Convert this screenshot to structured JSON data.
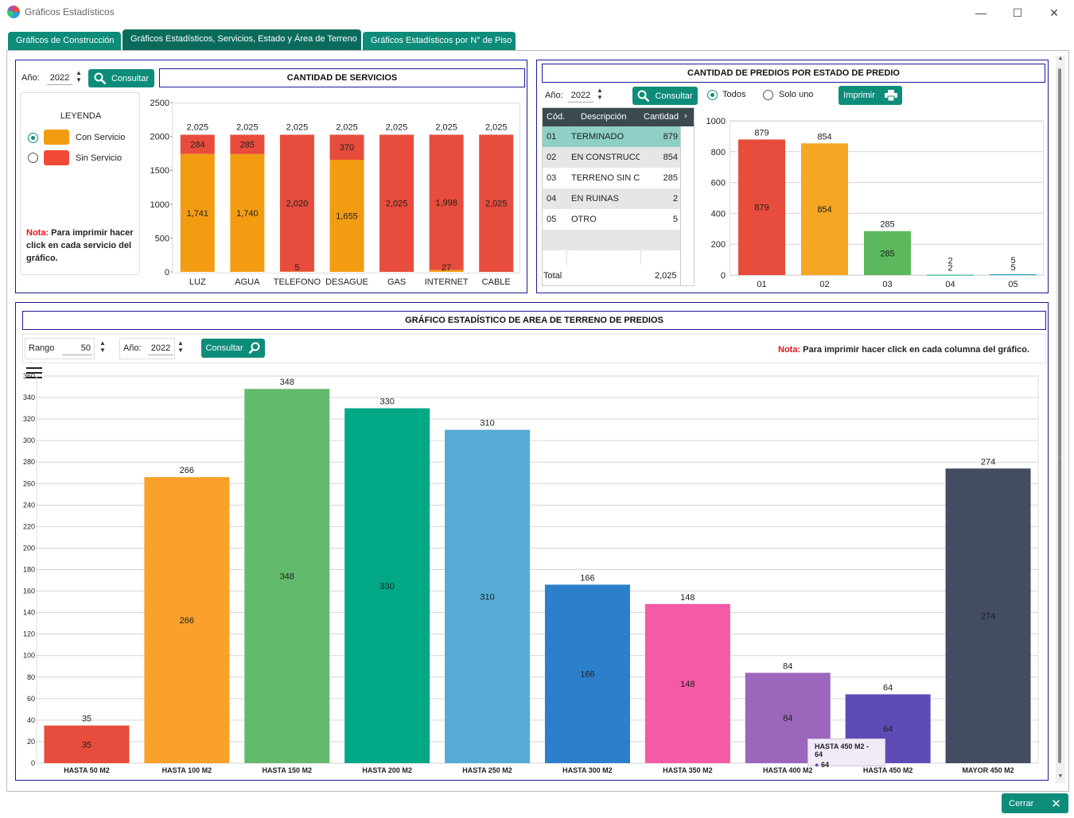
{
  "window": {
    "title": "Gráficos Estadísticos",
    "minimize": "—",
    "maximize": "☐",
    "close": "✕"
  },
  "tabs": [
    {
      "label": "Gráficos de Construcción"
    },
    {
      "label": "Gráficos Estadísticos, Servicios, Estado y Área de Terreno"
    },
    {
      "label": "Gráficos Estadísticos por N° de Piso"
    }
  ],
  "services": {
    "year_label": "Año:",
    "year": "2022",
    "consult_label": "Consultar",
    "caption": "CANTIDAD DE SERVICIOS",
    "legend": {
      "title": "LEYENDA",
      "items": [
        {
          "label": "Con Servicio",
          "color": "#f39c12"
        },
        {
          "label": "Sin Servicio",
          "color": "#f04a36"
        }
      ]
    },
    "note_prefix": "Nota:",
    "note_text": " Para imprimir hacer click en cada servicio del gráfico."
  },
  "estado": {
    "caption": "CANTIDAD DE PREDIOS POR ESTADO DE PREDIO",
    "year_label": "Año:",
    "year": "2022",
    "consult_label": "Consultar",
    "radio_all": "Todos",
    "radio_one": "Solo uno",
    "print_label": "Imprimir",
    "table": {
      "headers": [
        "Cód.",
        "Descripción",
        "Cantidad"
      ],
      "rows": [
        {
          "cod": "01",
          "desc": "TERMINADO",
          "qty": "879"
        },
        {
          "cod": "02",
          "desc": "EN CONSTRUCCIÓN",
          "qty": "854"
        },
        {
          "cod": "03",
          "desc": "TERRENO SIN CO",
          "qty": "285"
        },
        {
          "cod": "04",
          "desc": "EN RUINAS",
          "qty": "2"
        },
        {
          "cod": "05",
          "desc": "OTRO",
          "qty": "5"
        }
      ],
      "total_label": "Total",
      "total_value": "2,025"
    }
  },
  "area": {
    "caption": "GRÁFICO ESTADÍSTICO DE AREA DE TERRENO DE PREDIOS",
    "range_label": "Rango",
    "range": "50",
    "year_label": "Año:",
    "year": "2022",
    "consult_label": "Consultar",
    "note_prefix": "Nota:",
    "note_text": " Para imprimir hacer click en cada columna del gráfico.",
    "tooltip_title": "HASTA 450 M2 - 64",
    "tooltip_value": "64"
  },
  "footer": {
    "close_label": "Cerrar"
  },
  "chart_data": [
    {
      "type": "bar",
      "title": "CANTIDAD DE SERVICIOS",
      "stacked": true,
      "categories": [
        "LUZ",
        "AGUA",
        "TELEFONO",
        "DESAGUE",
        "GAS",
        "INTERNET",
        "CABLE"
      ],
      "series": [
        {
          "name": "Con Servicio",
          "color": "#f39c12",
          "values": [
            1741,
            1740,
            5,
            1655,
            0,
            27,
            0
          ]
        },
        {
          "name": "Sin Servicio",
          "color": "#e74c3c",
          "values": [
            284,
            285,
            2020,
            370,
            2025,
            1998,
            2025
          ]
        }
      ],
      "totals": [
        2025,
        2025,
        2025,
        2025,
        2025,
        2025,
        2025
      ],
      "ylim": [
        0,
        2500
      ],
      "yticks": [
        0,
        500,
        1000,
        1500,
        2000,
        2500
      ]
    },
    {
      "type": "bar",
      "title": "CANTIDAD DE PREDIOS POR ESTADO DE PREDIO",
      "categories": [
        "01",
        "02",
        "03",
        "04",
        "05"
      ],
      "values": [
        879,
        854,
        285,
        2,
        5
      ],
      "colors": [
        "#e74c3c",
        "#f5a623",
        "#5cb85c",
        "#1abc9c",
        "#17a2b8"
      ],
      "ylim": [
        0,
        1000
      ],
      "yticks": [
        0,
        200,
        400,
        600,
        800,
        1000
      ]
    },
    {
      "type": "bar",
      "title": "GRÁFICO ESTADÍSTICO DE AREA DE TERRENO DE PREDIOS",
      "categories": [
        "HASTA 50 M2",
        "HASTA 100 M2",
        "HASTA 150 M2",
        "HASTA 200 M2",
        "HASTA 250 M2",
        "HASTA 300 M2",
        "HASTA 350 M2",
        "HASTA 400 M2",
        "HASTA 450 M2",
        "MAYOR 450 M2"
      ],
      "values": [
        35,
        266,
        348,
        330,
        310,
        166,
        148,
        84,
        64,
        274
      ],
      "colors": [
        "#e74c3c",
        "#f9a12a",
        "#62bb6c",
        "#00a885",
        "#55abd4",
        "#2b7fcb",
        "#f45aa5",
        "#9b66bc",
        "#5f4bb6",
        "#434c63"
      ],
      "ylim": [
        0,
        360
      ],
      "yticks": [
        0,
        20,
        40,
        60,
        80,
        100,
        120,
        140,
        160,
        180,
        200,
        220,
        240,
        260,
        280,
        300,
        320,
        340,
        360
      ]
    }
  ]
}
